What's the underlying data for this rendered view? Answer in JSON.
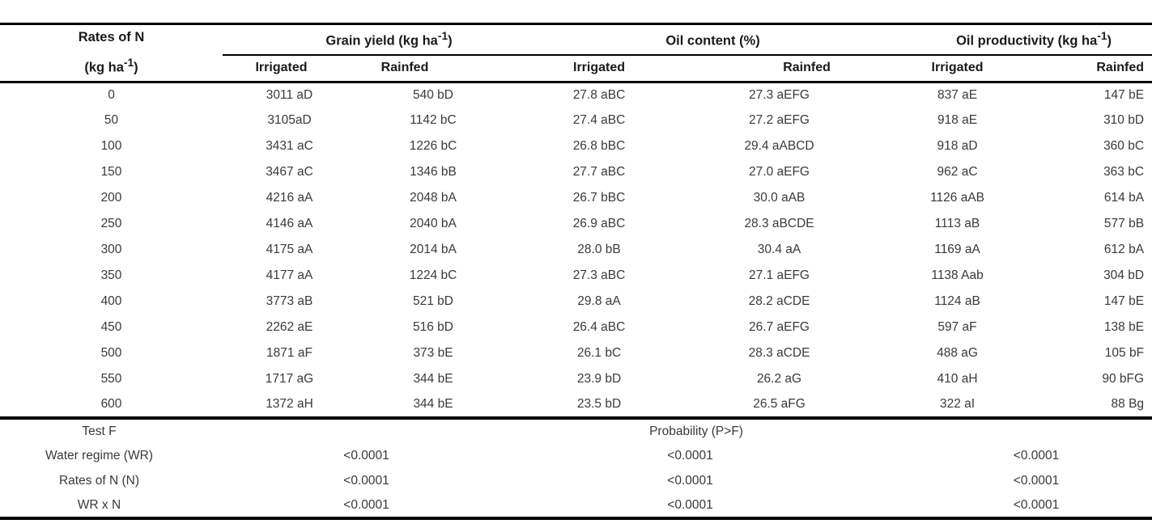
{
  "header": {
    "rates_line1": "Rates of N",
    "rates_line2_pre": "(kg ha",
    "rates_line2_sup": "-1",
    "rates_line2_suf": ")",
    "groups": [
      {
        "pre": "Grain yield (kg ha",
        "sup": "-1",
        "suf": ")"
      },
      {
        "pre": "Oil content (%)",
        "sup": "",
        "suf": ""
      },
      {
        "pre": "Oil productivity (kg ha",
        "sup": "-1",
        "suf": ")"
      }
    ],
    "subheaders": [
      "Irrigated",
      "Rainfed",
      "Irrigated",
      "Rainfed",
      "Irrigated",
      "Rainfed"
    ]
  },
  "rows": [
    [
      "0",
      "3011 aD",
      "540 bD",
      "27.8 aBC",
      "27.3 aEFG",
      "837 aE",
      "147 bE"
    ],
    [
      "50",
      "3105aD",
      "1142 bC",
      "27.4 aBC",
      "27.2 aEFG",
      "918 aE",
      "310 bD"
    ],
    [
      "100",
      "3431 aC",
      "1226 bC",
      "26.8 bBC",
      "29.4 aABCD",
      "918 aD",
      "360 bC"
    ],
    [
      "150",
      "3467 aC",
      "1346 bB",
      "27.7 aBC",
      "27.0 aEFG",
      "962 aC",
      "363 bC"
    ],
    [
      "200",
      "4216 aA",
      "2048 bA",
      "26.7 bBC",
      "30.0 aAB",
      "1126 aAB",
      "614 bA"
    ],
    [
      "250",
      "4146 aA",
      "2040 bA",
      "26.9 aBC",
      "28.3 aBCDE",
      "1113 aB",
      "577 bB"
    ],
    [
      "300",
      "4175 aA",
      "2014 bA",
      "28.0 bB",
      "30.4 aA",
      "1169 aA",
      "612 bA"
    ],
    [
      "350",
      "4177 aA",
      "1224 bC",
      "27.3 aBC",
      "27.1 aEFG",
      "1138 Aab",
      "304 bD"
    ],
    [
      "400",
      "3773 aB",
      "521 bD",
      "29.8 aA",
      "28.2 aCDE",
      "1124 aB",
      "147 bE"
    ],
    [
      "450",
      "2262 aE",
      "516 bD",
      "26.4 aBC",
      "26.7 aEFG",
      "597 aF",
      "138 bE"
    ],
    [
      "500",
      "1871 aF",
      "373 bE",
      "26.1 bC",
      "28.3 aCDE",
      "488 aG",
      "105 bF"
    ],
    [
      "550",
      "1717 aG",
      "344  bE",
      "23.9 bD",
      "26.2 aG",
      "410 aH",
      "90 bFG"
    ],
    [
      "600",
      "1372 aH",
      "344 bE",
      "23.5 bD",
      "26.5 aFG",
      "322  aI",
      "88 Bg"
    ]
  ],
  "footer": {
    "test_f_label": "Test F",
    "probability_label": "Probability (P>F)",
    "rows": [
      {
        "label": "Water regime (WR)",
        "values": [
          "<0.0001",
          "<0.0001",
          "<0.0001"
        ]
      },
      {
        "label": "Rates of N (N)",
        "values": [
          "<0.0001",
          "<0.0001",
          "<0.0001"
        ]
      },
      {
        "label": "WR x N",
        "values": [
          "<0.0001",
          "<0.0001",
          "<0.0001"
        ]
      }
    ]
  }
}
